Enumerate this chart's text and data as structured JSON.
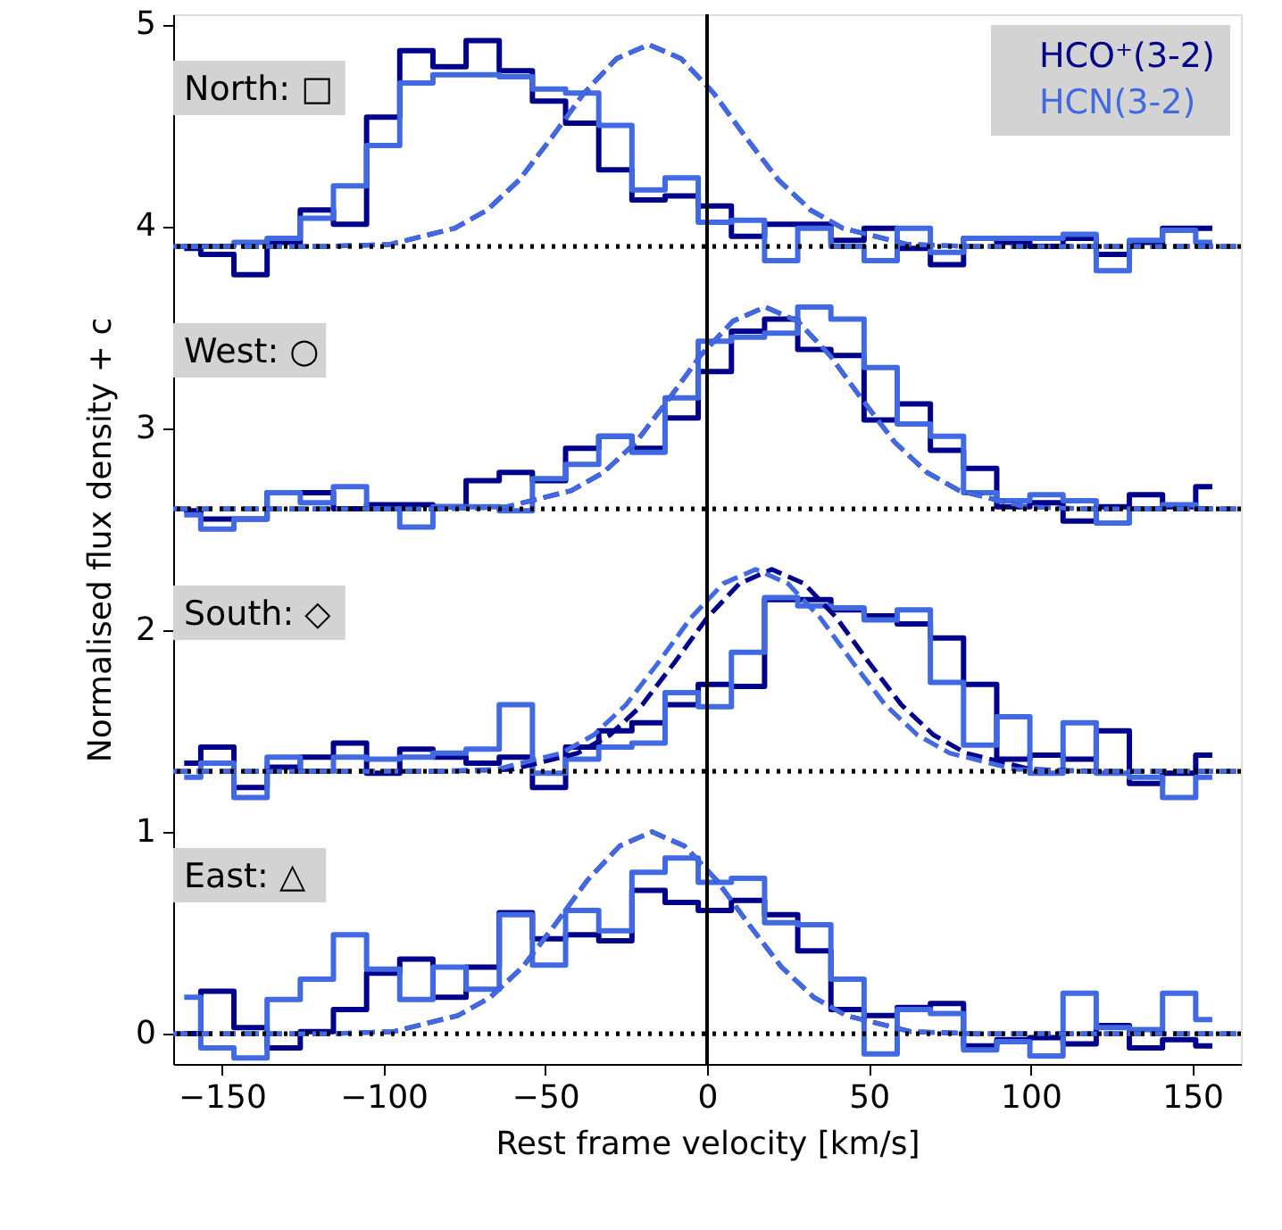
{
  "chart_data": {
    "type": "step",
    "xlabel": "Rest frame velocity [km/s]",
    "ylabel": "Normalised flux density + c",
    "x": [
      -161.6,
      -151.35,
      -141.1,
      -130.85,
      -120.6,
      -110.35,
      -100.1,
      -89.85,
      -79.6,
      -69.35,
      -59.1,
      -48.85,
      -38.6,
      -28.35,
      -18.1,
      -7.85,
      2.4,
      12.65,
      22.9,
      33.15,
      43.4,
      53.65,
      63.9,
      74.15,
      84.4,
      94.65,
      104.9,
      115.15,
      125.4,
      135.65,
      145.9,
      156.15
    ],
    "series": [
      {
        "name": "HCO⁺(3-2)",
        "color": "#00008b",
        "values": [
          3.89,
          3.86,
          3.76,
          3.92,
          4.08,
          4.01,
          4.54,
          4.87,
          4.79,
          4.92,
          4.77,
          4.62,
          4.51,
          4.28,
          4.13,
          4.15,
          4.1,
          3.95,
          4.01,
          4.01,
          3.93,
          3.99,
          3.89,
          3.81,
          3.94,
          3.92,
          3.9,
          3.94,
          3.86,
          3.92,
          3.99,
          3.99
        ]
      },
      {
        "name": "HCN(3-2)",
        "color": "#4169e1",
        "values": [
          3.9,
          3.9,
          3.92,
          3.94,
          4.04,
          4.2,
          4.4,
          4.71,
          4.75,
          4.75,
          4.74,
          4.68,
          4.66,
          4.5,
          4.18,
          4.24,
          4.02,
          4.03,
          3.83,
          3.99,
          3.9,
          3.83,
          3.99,
          3.87,
          3.94,
          3.94,
          3.94,
          3.96,
          3.78,
          3.93,
          3.98,
          3.92
        ]
      },
      {
        "color": "#00008b",
        "values": [
          2.59,
          2.55,
          2.55,
          2.68,
          2.68,
          2.6,
          2.62,
          2.62,
          2.61,
          2.74,
          2.78,
          2.74,
          2.9,
          2.96,
          2.9,
          3.05,
          3.28,
          3.48,
          3.54,
          3.39,
          3.36,
          3.04,
          3.12,
          2.89,
          2.8,
          2.61,
          2.63,
          2.54,
          2.61,
          2.67,
          2.61,
          2.71
        ]
      },
      {
        "color": "#4169e1",
        "values": [
          2.57,
          2.5,
          2.55,
          2.68,
          2.63,
          2.71,
          2.6,
          2.51,
          2.61,
          2.61,
          2.59,
          2.75,
          2.82,
          2.96,
          2.88,
          3.15,
          3.43,
          3.45,
          3.47,
          3.6,
          3.54,
          3.3,
          3.02,
          2.96,
          2.68,
          2.64,
          2.67,
          2.64,
          2.53,
          2.6,
          2.62,
          2.6
        ]
      },
      {
        "color": "#00008b",
        "values": [
          1.34,
          1.42,
          1.22,
          1.32,
          1.37,
          1.44,
          1.29,
          1.41,
          1.37,
          1.34,
          1.37,
          1.22,
          1.42,
          1.5,
          1.54,
          1.63,
          1.73,
          1.72,
          2.15,
          2.15,
          2.1,
          2.07,
          2.03,
          1.96,
          1.73,
          1.36,
          1.38,
          1.36,
          1.5,
          1.24,
          1.29,
          1.38
        ]
      },
      {
        "color": "#4169e1",
        "values": [
          1.27,
          1.34,
          1.17,
          1.37,
          1.3,
          1.37,
          1.36,
          1.37,
          1.39,
          1.41,
          1.63,
          1.29,
          1.36,
          1.42,
          1.44,
          1.69,
          1.62,
          1.89,
          2.16,
          2.12,
          2.11,
          2.05,
          2.1,
          1.74,
          1.43,
          1.57,
          1.29,
          1.54,
          1.29,
          1.27,
          1.17,
          1.27
        ]
      },
      {
        "color": "#00008b",
        "values": [
          0.0,
          0.21,
          0.03,
          -0.07,
          0.01,
          0.12,
          0.3,
          0.37,
          0.18,
          0.33,
          0.6,
          0.47,
          0.49,
          0.46,
          0.71,
          0.65,
          0.61,
          0.66,
          0.59,
          0.41,
          0.12,
          0.09,
          0.13,
          0.15,
          -0.06,
          -0.03,
          -0.02,
          -0.05,
          0.04,
          -0.07,
          -0.03,
          -0.06
        ]
      },
      {
        "color": "#4169e1",
        "values": [
          0.18,
          -0.07,
          -0.12,
          0.17,
          0.27,
          0.49,
          0.32,
          0.17,
          0.33,
          0.22,
          0.59,
          0.34,
          0.61,
          0.51,
          0.8,
          0.87,
          0.75,
          0.77,
          0.55,
          0.54,
          0.27,
          -0.1,
          0.12,
          0.1,
          -0.08,
          -0.04,
          -0.11,
          0.2,
          0.03,
          0.02,
          0.2,
          0.07
        ]
      },
      {
        "type": "line",
        "line_style": "dashed",
        "color": "#00008b",
        "x": [
          -165,
          -118,
          -98,
          -78,
          -68,
          -58,
          -48,
          -38,
          -28,
          -18,
          -8,
          2,
          12,
          22,
          32,
          42,
          62,
          82,
          165
        ],
        "values": [
          3.9,
          3.9,
          3.91,
          3.99,
          4.08,
          4.23,
          4.44,
          4.66,
          4.83,
          4.9,
          4.83,
          4.66,
          4.44,
          4.23,
          4.08,
          3.99,
          3.91,
          3.9,
          3.9
        ]
      },
      {
        "type": "line",
        "line_style": "dashed",
        "color": "#4169e1",
        "x": [
          -165,
          -118,
          -98,
          -78,
          -68,
          -58,
          -48,
          -38,
          -28,
          -18,
          -8,
          2,
          12,
          22,
          32,
          42,
          62,
          82,
          165
        ],
        "values": [
          3.9,
          3.9,
          3.91,
          3.99,
          4.08,
          4.23,
          4.44,
          4.66,
          4.83,
          4.9,
          4.83,
          4.66,
          4.44,
          4.23,
          4.08,
          3.99,
          3.91,
          3.9,
          3.9
        ]
      },
      {
        "type": "line",
        "line_style": "dashed",
        "color": "#00008b",
        "x": [
          -165,
          -82,
          -62,
          -42,
          -32,
          -22,
          -12,
          -2,
          8,
          18,
          28,
          38,
          48,
          58,
          68,
          78,
          98,
          118,
          165
        ],
        "values": [
          2.6,
          2.6,
          2.61,
          2.69,
          2.78,
          2.93,
          3.14,
          3.36,
          3.53,
          3.6,
          3.53,
          3.36,
          3.14,
          2.93,
          2.78,
          2.69,
          2.61,
          2.6,
          2.6
        ]
      },
      {
        "type": "line",
        "line_style": "dashed",
        "color": "#4169e1",
        "x": [
          -165,
          -82,
          -62,
          -42,
          -32,
          -22,
          -12,
          -2,
          8,
          18,
          28,
          38,
          48,
          58,
          68,
          78,
          98,
          118,
          165
        ],
        "values": [
          2.6,
          2.6,
          2.61,
          2.69,
          2.78,
          2.93,
          3.14,
          3.36,
          3.53,
          3.6,
          3.53,
          3.36,
          3.14,
          2.93,
          2.78,
          2.69,
          2.61,
          2.6,
          2.6
        ]
      },
      {
        "type": "line",
        "line_style": "dashed",
        "color": "#00008b",
        "x": [
          -165,
          -80,
          -60,
          -40,
          -30,
          -20,
          -10,
          0,
          10,
          20,
          30,
          40,
          50,
          60,
          70,
          80,
          100,
          120,
          165
        ],
        "values": [
          1.3,
          1.3,
          1.31,
          1.39,
          1.48,
          1.63,
          1.84,
          2.06,
          2.23,
          2.3,
          2.23,
          2.06,
          1.84,
          1.63,
          1.48,
          1.39,
          1.31,
          1.3,
          1.3
        ]
      },
      {
        "type": "line",
        "line_style": "dashed",
        "color": "#4169e1",
        "x": [
          -165,
          -85,
          -65,
          -45,
          -35,
          -25,
          -15,
          -5,
          5,
          15,
          25,
          35,
          45,
          55,
          65,
          75,
          95,
          115,
          165
        ],
        "values": [
          1.3,
          1.3,
          1.31,
          1.39,
          1.48,
          1.63,
          1.84,
          2.06,
          2.23,
          2.3,
          2.23,
          2.06,
          1.84,
          1.63,
          1.48,
          1.39,
          1.31,
          1.3,
          1.3
        ]
      },
      {
        "type": "line",
        "line_style": "dashed",
        "color": "#00008b",
        "x": [
          -165,
          -117,
          -97,
          -77,
          -67,
          -57,
          -47,
          -37,
          -27,
          -17,
          -7,
          3,
          13,
          23,
          33,
          43,
          63,
          83,
          165
        ],
        "values": [
          0,
          0,
          0.01,
          0.09,
          0.18,
          0.33,
          0.54,
          0.76,
          0.93,
          1.0,
          0.93,
          0.76,
          0.54,
          0.33,
          0.18,
          0.09,
          0.01,
          0,
          0
        ]
      },
      {
        "type": "line",
        "line_style": "dashed",
        "color": "#4169e1",
        "x": [
          -165,
          -117,
          -97,
          -77,
          -67,
          -57,
          -47,
          -37,
          -27,
          -17,
          -7,
          3,
          13,
          23,
          33,
          43,
          63,
          83,
          165
        ],
        "values": [
          0,
          0,
          0.01,
          0.09,
          0.18,
          0.33,
          0.54,
          0.76,
          0.93,
          1.0,
          0.93,
          0.76,
          0.54,
          0.33,
          0.18,
          0.09,
          0.01,
          0,
          0
        ]
      }
    ],
    "ref_lines": [
      {
        "axis": "y",
        "value": 3.9,
        "color": "#000000",
        "line_style": "dotted"
      },
      {
        "axis": "y",
        "value": 2.6,
        "color": "#000000",
        "line_style": "dotted"
      },
      {
        "axis": "y",
        "value": 1.3,
        "color": "#000000",
        "line_style": "dotted"
      },
      {
        "axis": "y",
        "value": 0,
        "color": "#000000",
        "line_style": "dotted"
      },
      {
        "axis": "x",
        "value": 0,
        "color": "#000000",
        "line_style": "solid"
      }
    ],
    "annotations": [
      "North: □",
      "West: ○",
      "South: ◇",
      "East: △"
    ],
    "xlim": [
      -165,
      165
    ],
    "ylim": [
      -0.15,
      5.05
    ],
    "xticks": [
      {
        "value": -150,
        "label": "−150"
      },
      {
        "value": -100,
        "label": "−100"
      },
      {
        "value": -50,
        "label": "−50"
      },
      0,
      50,
      100,
      150
    ],
    "yticks": [
      0,
      1,
      2,
      3,
      4,
      5
    ],
    "grid": false,
    "legend": "top right",
    "marker": "none",
    "line_style": "solid"
  }
}
